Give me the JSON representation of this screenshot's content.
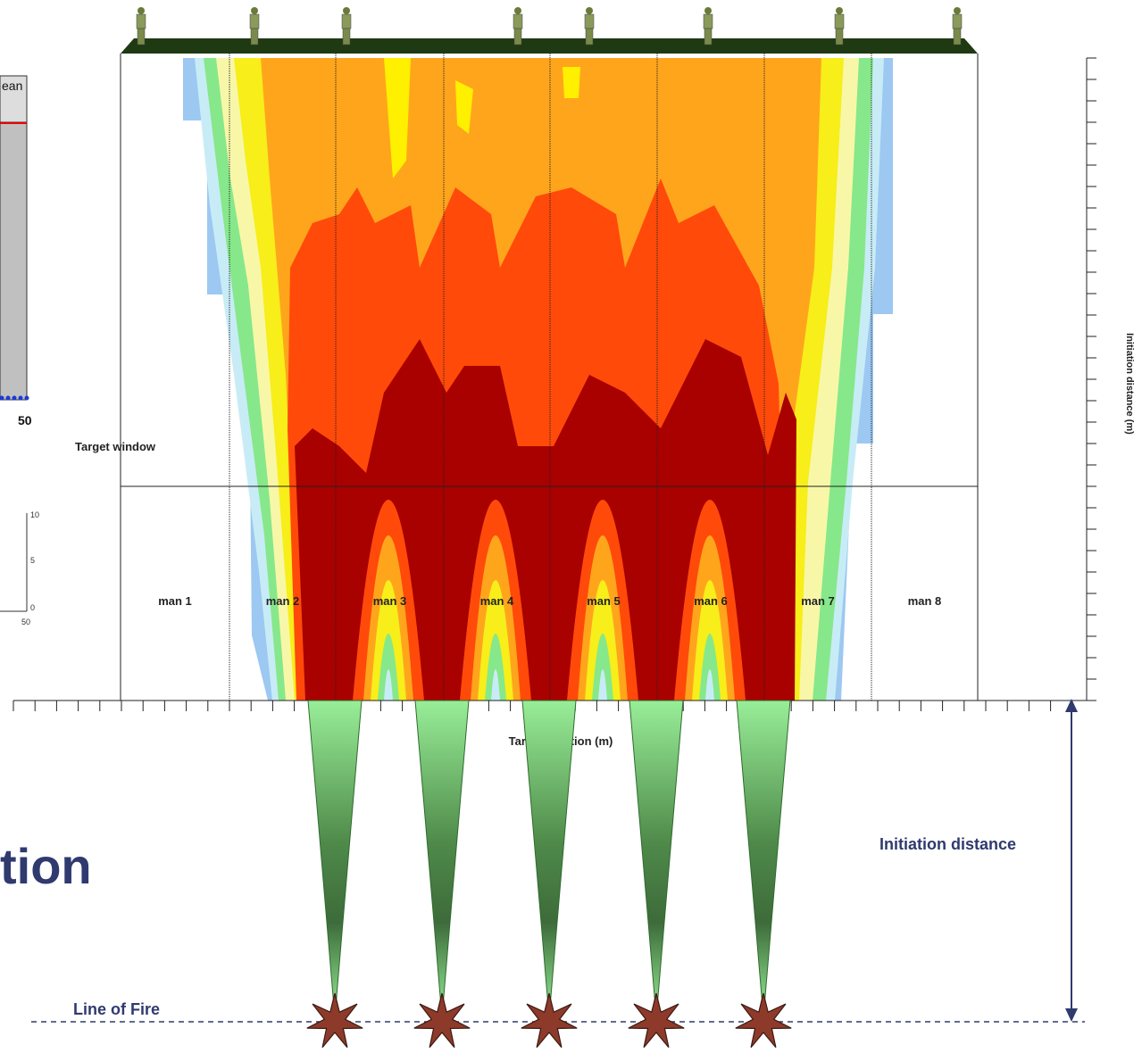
{
  "left_panel": {
    "header": "ean",
    "x_label": "50",
    "inset_ticks": [
      "10",
      "5",
      "0"
    ],
    "inset_x_label": "50"
  },
  "heatmap": {
    "target_window_label": "Target window",
    "target_labels": [
      "man 1",
      "man 2",
      "man 3",
      "man 4",
      "man 5",
      "man 6",
      "man 7",
      "man 8"
    ],
    "x_axis_title": "Target position (m)",
    "y_axis_title": "Initiation distance (m)"
  },
  "annotations": {
    "big_text": "tion",
    "initiation_distance": "Initiation distance",
    "line_of_fire": "Line of Fire"
  }
}
